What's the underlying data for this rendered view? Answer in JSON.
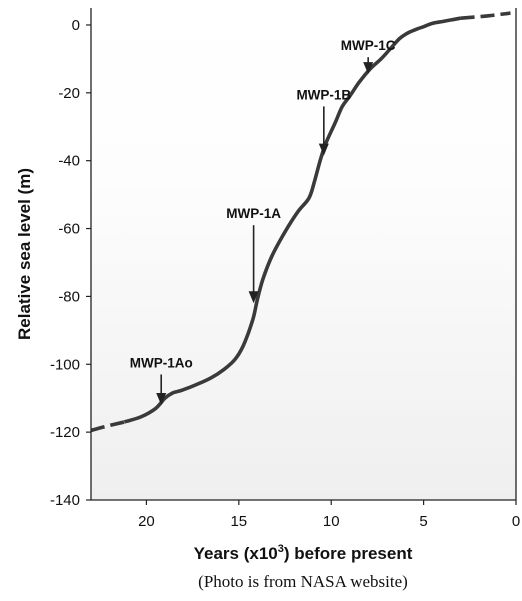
{
  "chart_data": {
    "type": "line",
    "title": "",
    "xlabel_main": "Years (x10",
    "xlabel_sup": "3",
    "xlabel_rest": ") before present",
    "ylabel": "Relative sea level (m)",
    "xlim": [
      23,
      0
    ],
    "ylim": [
      -140,
      5
    ],
    "x_ticks": [
      20,
      15,
      10,
      5,
      0
    ],
    "y_ticks": [
      0,
      -20,
      -40,
      -60,
      -80,
      -100,
      -120,
      -140
    ],
    "grid": false,
    "series": [
      {
        "style": "dashed",
        "x": [
          23,
          22.2,
          21.2
        ],
        "y": [
          -119.5,
          -118.3,
          -117
        ]
      },
      {
        "style": "solid",
        "x": [
          21.2,
          20.3,
          19.5,
          19.0,
          18.6,
          18.3,
          18.0,
          17.3,
          16.5,
          15.8,
          15.2,
          14.8,
          14.5,
          14.2,
          14.0,
          13.7,
          13.2,
          12.5,
          11.8,
          11.2,
          10.9,
          10.6,
          10.3,
          9.8,
          9.4,
          9.0,
          8.5,
          7.9,
          7.3,
          6.8,
          6.3,
          5.9,
          5.5,
          5.0,
          4.5,
          4.0,
          3.5,
          3.0
        ],
        "y": [
          -117,
          -115.5,
          -113,
          -110,
          -108.5,
          -108,
          -107.5,
          -106,
          -104,
          -101.5,
          -98.5,
          -95,
          -91,
          -86,
          -81,
          -75,
          -68,
          -61,
          -55,
          -51,
          -46,
          -40,
          -35,
          -29,
          -24,
          -21,
          -17,
          -13,
          -10,
          -7,
          -4,
          -2.5,
          -1.5,
          -0.5,
          0.5,
          1,
          1.5,
          2
        ]
      },
      {
        "style": "dashed",
        "x": [
          3.0,
          1.5,
          0.3
        ],
        "y": [
          2,
          2.7,
          3.5
        ]
      }
    ],
    "annotations": [
      {
        "label": "MWP-1Ao",
        "x": 19.2,
        "y_from": -103,
        "y_to": -112
      },
      {
        "label": "MWP-1A",
        "x": 14.2,
        "y_from": -59,
        "y_to": -82
      },
      {
        "label": "MWP-1B",
        "x": 10.4,
        "y_from": -24,
        "y_to": -38.5
      },
      {
        "label": "MWP-1C",
        "x": 8.0,
        "y_from": -9.5,
        "y_to": -14.5
      }
    ]
  },
  "caption": "(Photo is from NASA website)"
}
